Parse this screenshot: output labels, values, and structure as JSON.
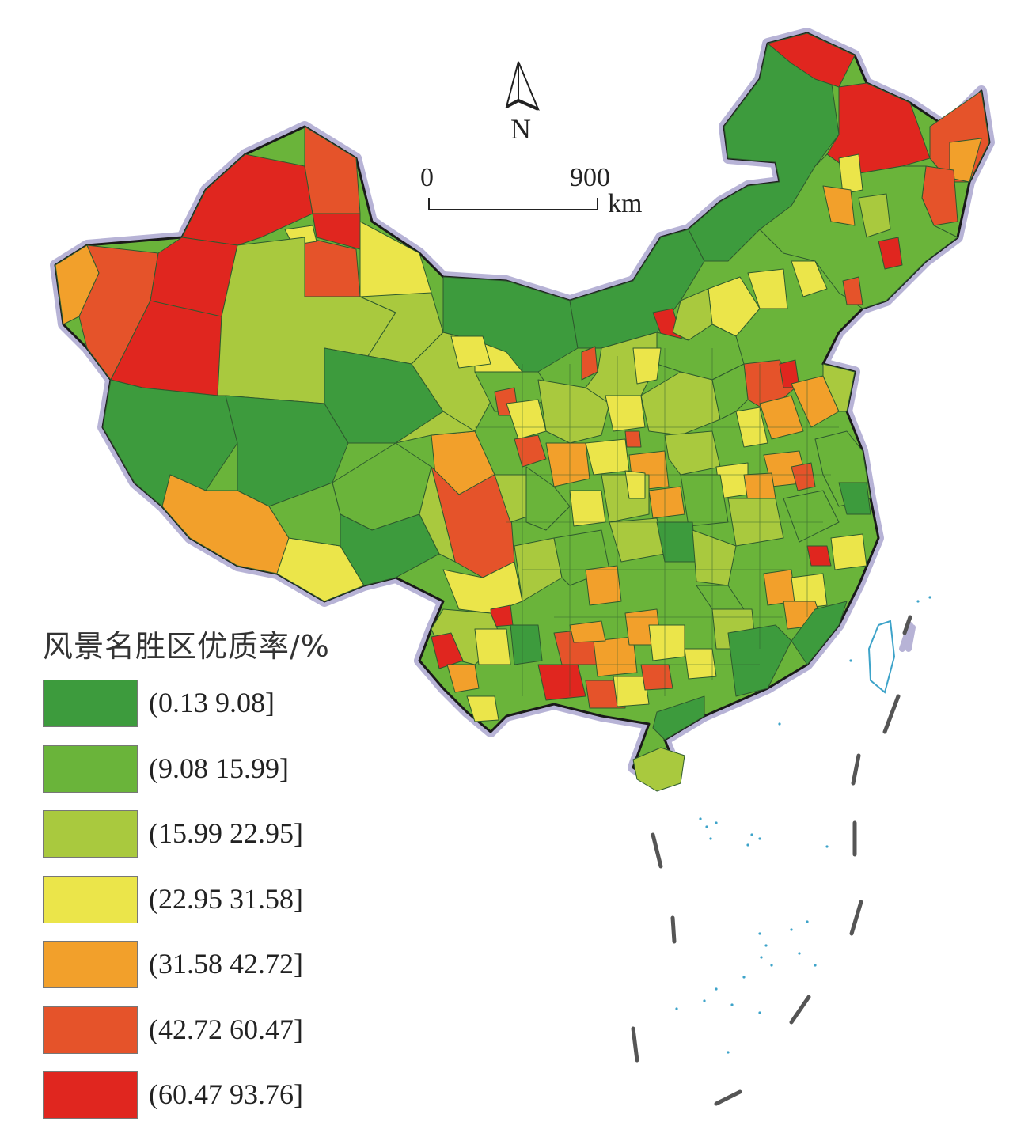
{
  "north": {
    "label": "N"
  },
  "scale": {
    "start": "0",
    "end": "900",
    "unit": "km"
  },
  "legend": {
    "title": "风景名胜区优质率/%",
    "classes": [
      {
        "label": "(0.13 9.08]",
        "color": "#3d9b3d"
      },
      {
        "label": "(9.08 15.99]",
        "color": "#6ab43a"
      },
      {
        "label": "(15.99 22.95]",
        "color": "#a9c93e"
      },
      {
        "label": "(22.95 31.58]",
        "color": "#ebe54a"
      },
      {
        "label": "(31.58 42.72]",
        "color": "#f2a02b"
      },
      {
        "label": "(42.72 60.47]",
        "color": "#e5532a"
      },
      {
        "label": "(60.47 93.76]",
        "color": "#e0261f"
      }
    ]
  }
}
